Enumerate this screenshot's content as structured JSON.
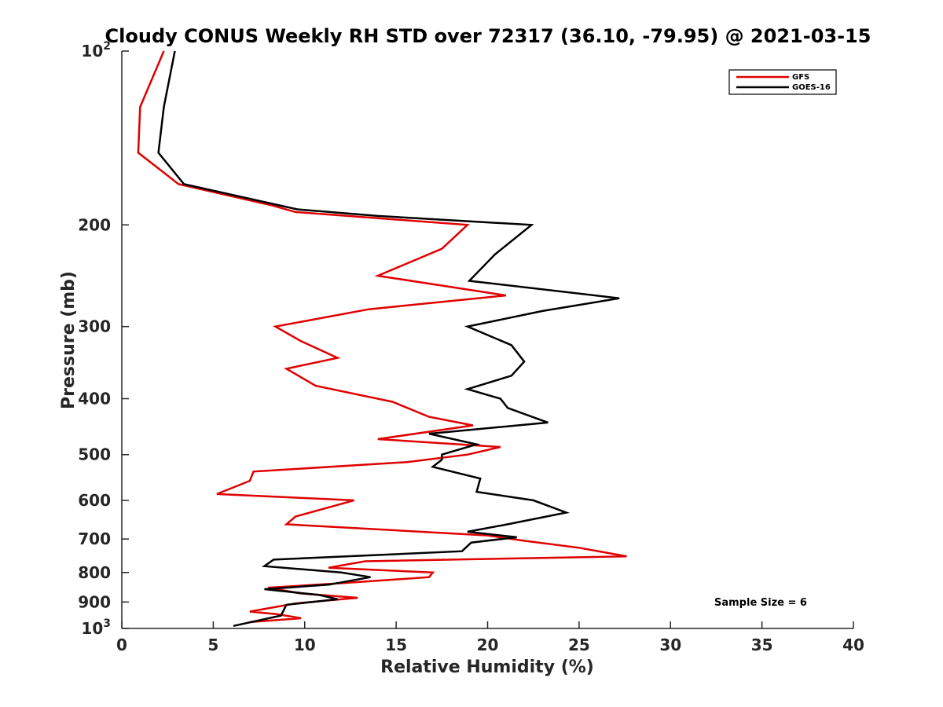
{
  "chart_data": {
    "type": "line",
    "title": "Cloudy CONUS Weekly RH STD over 72317 (36.10, -79.95) @ 2021-03-15",
    "xlabel": "Relative Humidity (%)",
    "ylabel": "Pressure (mb)",
    "xlim": [
      0,
      40
    ],
    "ylim": [
      100,
      1000
    ],
    "y_scale": "log",
    "y_reversed": true,
    "grid": false,
    "legend_position": "top-right",
    "annotation": "Sample Size = 6",
    "x_ticks": [
      {
        "value": 0,
        "label": "0"
      },
      {
        "value": 5,
        "label": "5"
      },
      {
        "value": 10,
        "label": "10"
      },
      {
        "value": 15,
        "label": "15"
      },
      {
        "value": 20,
        "label": "20"
      },
      {
        "value": 25,
        "label": "25"
      },
      {
        "value": 30,
        "label": "30"
      },
      {
        "value": 35,
        "label": "35"
      },
      {
        "value": 40,
        "label": "40"
      }
    ],
    "y_ticks": [
      {
        "value": 100,
        "label": "10",
        "sup": "2"
      },
      {
        "value": 200,
        "label": "200",
        "sup": ""
      },
      {
        "value": 300,
        "label": "300",
        "sup": ""
      },
      {
        "value": 400,
        "label": "400",
        "sup": ""
      },
      {
        "value": 500,
        "label": "500",
        "sup": ""
      },
      {
        "value": 600,
        "label": "600",
        "sup": ""
      },
      {
        "value": 700,
        "label": "700",
        "sup": ""
      },
      {
        "value": 800,
        "label": "800",
        "sup": ""
      },
      {
        "value": 900,
        "label": "900",
        "sup": ""
      },
      {
        "value": 1000,
        "label": "10",
        "sup": "3"
      }
    ],
    "series": [
      {
        "name": "GFS",
        "color": "#e00000",
        "points": [
          [
            2.3,
            100
          ],
          [
            1.0,
            125
          ],
          [
            0.9,
            150
          ],
          [
            3.1,
            170
          ],
          [
            8.2,
            185
          ],
          [
            9.5,
            190
          ],
          [
            18.9,
            200
          ],
          [
            17.5,
            220
          ],
          [
            14.0,
            245
          ],
          [
            21.0,
            265
          ],
          [
            13.5,
            280
          ],
          [
            8.4,
            300
          ],
          [
            9.8,
            318
          ],
          [
            11.8,
            340
          ],
          [
            9.0,
            355
          ],
          [
            10.6,
            380
          ],
          [
            14.8,
            405
          ],
          [
            16.8,
            430
          ],
          [
            19.2,
            445
          ],
          [
            14.0,
            470
          ],
          [
            20.7,
            485
          ],
          [
            18.9,
            500
          ],
          [
            15.6,
            515
          ],
          [
            7.2,
            535
          ],
          [
            7.0,
            555
          ],
          [
            5.2,
            585
          ],
          [
            12.7,
            600
          ],
          [
            9.5,
            640
          ],
          [
            9.0,
            660
          ],
          [
            20.0,
            690
          ],
          [
            22.0,
            705
          ],
          [
            25.0,
            725
          ],
          [
            27.6,
            750
          ],
          [
            13.3,
            765
          ],
          [
            11.3,
            785
          ],
          [
            17.0,
            800
          ],
          [
            16.8,
            815
          ],
          [
            12.0,
            835
          ],
          [
            8.0,
            850
          ],
          [
            9.8,
            870
          ],
          [
            12.9,
            885
          ],
          [
            9.5,
            905
          ],
          [
            7.0,
            935
          ],
          [
            8.5,
            945
          ],
          [
            9.8,
            960
          ],
          [
            7.0,
            975
          ]
        ]
      },
      {
        "name": "GOES-16",
        "color": "#000000",
        "points": [
          [
            2.9,
            100
          ],
          [
            2.3,
            125
          ],
          [
            2.0,
            150
          ],
          [
            3.4,
            170
          ],
          [
            9.6,
            188
          ],
          [
            14.0,
            193
          ],
          [
            22.4,
            200
          ],
          [
            20.4,
            225
          ],
          [
            19.0,
            250
          ],
          [
            27.2,
            268
          ],
          [
            23.0,
            282
          ],
          [
            18.9,
            300
          ],
          [
            21.3,
            323
          ],
          [
            22.0,
            345
          ],
          [
            21.3,
            365
          ],
          [
            18.9,
            385
          ],
          [
            20.7,
            400
          ],
          [
            21.1,
            415
          ],
          [
            23.3,
            440
          ],
          [
            16.8,
            460
          ],
          [
            19.4,
            480
          ],
          [
            17.5,
            500
          ],
          [
            17.5,
            510
          ],
          [
            17.0,
            525
          ],
          [
            19.6,
            550
          ],
          [
            19.4,
            580
          ],
          [
            22.5,
            600
          ],
          [
            24.3,
            630
          ],
          [
            21.1,
            660
          ],
          [
            18.9,
            680
          ],
          [
            21.6,
            695
          ],
          [
            19.1,
            710
          ],
          [
            18.6,
            735
          ],
          [
            8.3,
            760
          ],
          [
            7.8,
            780
          ],
          [
            12.0,
            800
          ],
          [
            13.6,
            815
          ],
          [
            11.3,
            840
          ],
          [
            7.8,
            855
          ],
          [
            10.8,
            875
          ],
          [
            11.8,
            890
          ],
          [
            9.0,
            910
          ],
          [
            8.7,
            950
          ],
          [
            6.1,
            990
          ]
        ]
      }
    ]
  }
}
